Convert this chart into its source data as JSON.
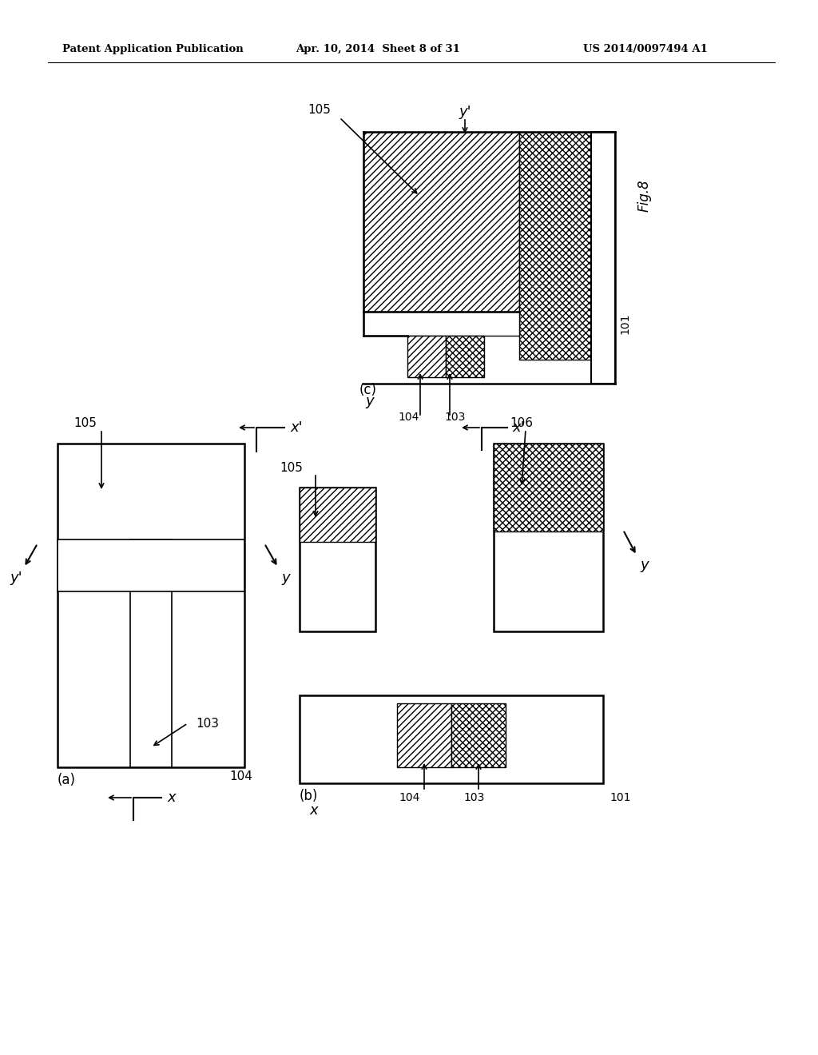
{
  "bg_color": "#ffffff",
  "header_left": "Patent Application Publication",
  "header_center": "Apr. 10, 2014  Sheet 8 of 31",
  "header_right": "US 2014/0097494 A1"
}
